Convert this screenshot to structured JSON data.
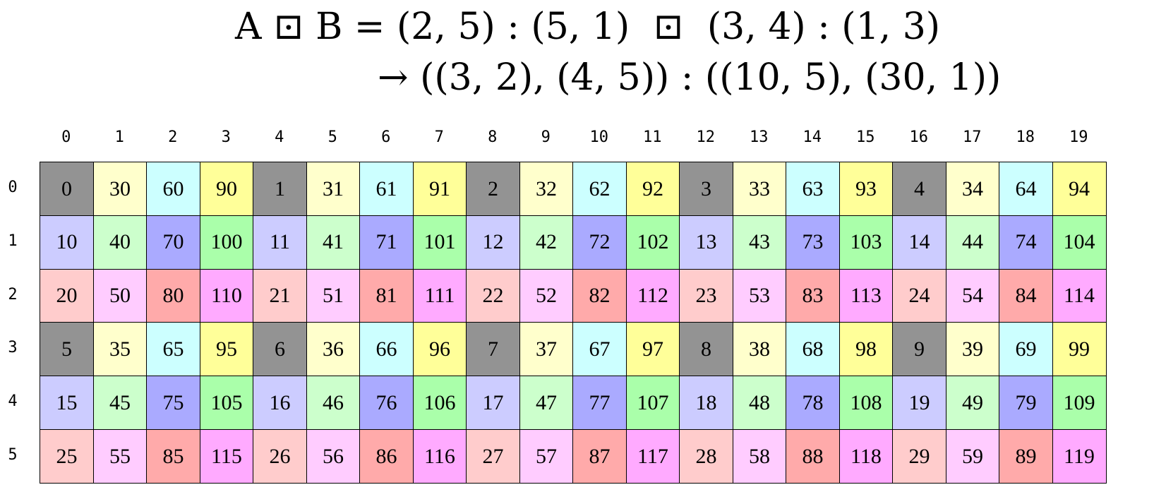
{
  "title": {
    "line1": "A ⊡ B = (2, 5) : (5, 1)  ⊡  (3, 4) : (1, 3)",
    "line2": "→ ((3, 2), (4, 5)) : ((10, 5), (30, 1))"
  },
  "column_headers": [
    "0",
    "1",
    "2",
    "3",
    "4",
    "5",
    "6",
    "7",
    "8",
    "9",
    "10",
    "11",
    "12",
    "13",
    "14",
    "15",
    "16",
    "17",
    "18",
    "19"
  ],
  "row_headers": [
    "0",
    "1",
    "2",
    "3",
    "4",
    "5"
  ],
  "cell_colors": [
    [
      "#939393",
      "#ffffcc",
      "#ccffff",
      "#ffff99"
    ],
    [
      "#ccccff",
      "#ccffcc",
      "#aaaaff",
      "#aaffaa"
    ],
    [
      "#ffcccc",
      "#ffccff",
      "#ffaaaa",
      "#ffaaff"
    ]
  ],
  "grid": [
    [
      "0",
      "30",
      "60",
      "90",
      "1",
      "31",
      "61",
      "91",
      "2",
      "32",
      "62",
      "92",
      "3",
      "33",
      "63",
      "93",
      "4",
      "34",
      "64",
      "94"
    ],
    [
      "10",
      "40",
      "70",
      "100",
      "11",
      "41",
      "71",
      "101",
      "12",
      "42",
      "72",
      "102",
      "13",
      "43",
      "73",
      "103",
      "14",
      "44",
      "74",
      "104"
    ],
    [
      "20",
      "50",
      "80",
      "110",
      "21",
      "51",
      "81",
      "111",
      "22",
      "52",
      "82",
      "112",
      "23",
      "53",
      "83",
      "113",
      "24",
      "54",
      "84",
      "114"
    ],
    [
      "5",
      "35",
      "65",
      "95",
      "6",
      "36",
      "66",
      "96",
      "7",
      "37",
      "67",
      "97",
      "8",
      "38",
      "68",
      "98",
      "9",
      "39",
      "69",
      "99"
    ],
    [
      "15",
      "45",
      "75",
      "105",
      "16",
      "46",
      "76",
      "106",
      "17",
      "47",
      "77",
      "107",
      "18",
      "48",
      "78",
      "108",
      "19",
      "49",
      "79",
      "109"
    ],
    [
      "25",
      "55",
      "85",
      "115",
      "26",
      "56",
      "86",
      "116",
      "27",
      "57",
      "87",
      "117",
      "28",
      "58",
      "88",
      "118",
      "29",
      "59",
      "89",
      "119"
    ]
  ]
}
